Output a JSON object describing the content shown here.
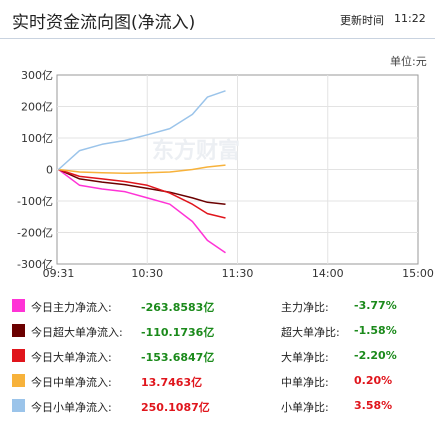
{
  "header": {
    "title": "实时资金流向图(净流入)",
    "updated_label": "更新时间",
    "updated_time": "11:22"
  },
  "unit_label": "单位:元",
  "watermark": "东方财富",
  "chart_data": {
    "type": "line",
    "x_ticks": [
      "09:31",
      "10:30",
      "11:30",
      "14:00",
      "15:00"
    ],
    "y_ticks": [
      "300亿",
      "200亿",
      "100亿",
      "0",
      "-100亿",
      "-200亿",
      "-300亿"
    ],
    "ylim": [
      -300,
      300
    ],
    "y_unit": "亿",
    "grid": true,
    "x": [
      "09:31",
      "09:45",
      "10:00",
      "10:15",
      "10:30",
      "10:45",
      "11:00",
      "11:10",
      "11:22"
    ],
    "series": [
      {
        "name": "今日主力净流入",
        "color": "#ff33d6",
        "values": [
          0,
          -50,
          -62,
          -70,
          -90,
          -110,
          -165,
          -225,
          -264
        ]
      },
      {
        "name": "今日超大单净流入",
        "color": "#6b0000",
        "values": [
          0,
          -30,
          -40,
          -48,
          -60,
          -72,
          -90,
          -104,
          -110
        ]
      },
      {
        "name": "今日大单净流入",
        "color": "#e0151c",
        "values": [
          0,
          -22,
          -30,
          -38,
          -50,
          -75,
          -110,
          -140,
          -154
        ]
      },
      {
        "name": "今日中单净流入",
        "color": "#f7b23b",
        "values": [
          0,
          -8,
          -10,
          -12,
          -10,
          -8,
          0,
          8,
          14
        ]
      },
      {
        "name": "今日小单净流入",
        "color": "#9bc4ea",
        "values": [
          0,
          60,
          80,
          92,
          110,
          130,
          175,
          230,
          250
        ]
      }
    ]
  },
  "legend": [
    {
      "label": "今日主力净流入:",
      "value": "-263.8583亿",
      "ratio_label": "主力净比:",
      "ratio": "-3.77%",
      "color": "#ff33d6",
      "value_color": "#1b8a1b",
      "ratio_color": "#1b8a1b"
    },
    {
      "label": "今日超大单净流入:",
      "value": "-110.1736亿",
      "ratio_label": "超大单净比:",
      "ratio": "-1.58%",
      "color": "#6b0000",
      "value_color": "#1b8a1b",
      "ratio_color": "#1b8a1b"
    },
    {
      "label": "今日大单净流入:",
      "value": "-153.6847亿",
      "ratio_label": "大单净比:",
      "ratio": "-2.20%",
      "color": "#e0151c",
      "value_color": "#1b8a1b",
      "ratio_color": "#1b8a1b"
    },
    {
      "label": "今日中单净流入:",
      "value": "13.7463亿",
      "ratio_label": "中单净比:",
      "ratio": "0.20%",
      "color": "#f7b23b",
      "value_color": "#e0151c",
      "ratio_color": "#e0151c"
    },
    {
      "label": "今日小单净流入:",
      "value": "250.1087亿",
      "ratio_label": "小单净比:",
      "ratio": "3.58%",
      "color": "#9bc4ea",
      "value_color": "#e0151c",
      "ratio_color": "#e0151c"
    }
  ]
}
